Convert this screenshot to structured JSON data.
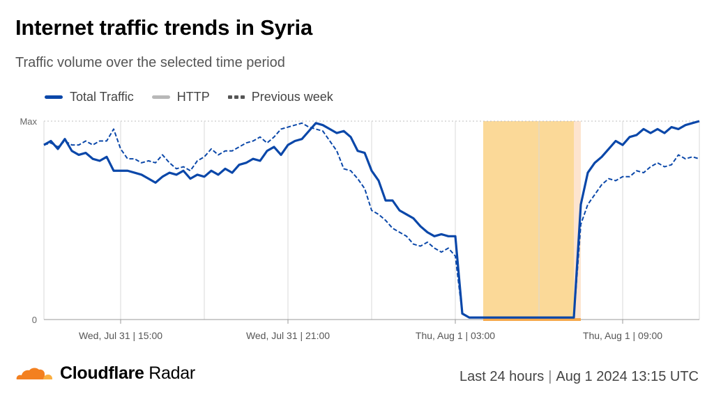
{
  "header": {
    "title": "Internet traffic trends in Syria",
    "subtitle": "Traffic volume over the selected time period"
  },
  "legend": [
    {
      "label": "Total Traffic",
      "color": "#0a47a9",
      "style": "solid"
    },
    {
      "label": "HTTP",
      "color": "#b8b8b8",
      "style": "solid"
    },
    {
      "label": "Previous week",
      "color": "#555555",
      "style": "dashed"
    }
  ],
  "footer": {
    "brand_bold": "Cloudflare",
    "brand_light": "Radar",
    "range": "Last 24 hours",
    "timestamp": "Aug 1 2024 13:15 UTC"
  },
  "colors": {
    "total": "#0a47a9",
    "previous": "#0a47a9",
    "outage": "#fbd998",
    "outage_edge": "#fde4cf",
    "outage_marker": "#f6a94b",
    "grid": "#d9d9d9",
    "cloud_orange": "#f38020",
    "cloud_light": "#faae40"
  },
  "chart_data": {
    "type": "line",
    "x_unit": "hours after Jul 31 2024 13:15 UTC",
    "xlim": [
      0,
      23.5
    ],
    "ylim": [
      0,
      1
    ],
    "y_tick_labels": [
      {
        "value": 0,
        "label": "0"
      },
      {
        "value": 1,
        "label": "Max"
      }
    ],
    "x_ticks": [
      {
        "value": 2.75,
        "label": "Wed, Jul 31 | 15:00"
      },
      {
        "value": 8.75,
        "label": "Wed, Jul 31 | 21:00"
      },
      {
        "value": 14.75,
        "label": "Thu, Aug 1 | 03:00"
      },
      {
        "value": 20.75,
        "label": "Thu, Aug 1 | 09:00"
      }
    ],
    "minor_gridlines": [
      5.75,
      11.75,
      17.75
    ],
    "outage_ranges": [
      {
        "start": 15.75,
        "end": 19.0,
        "style": "main"
      },
      {
        "start": 19.0,
        "end": 19.25,
        "style": "edge"
      }
    ],
    "series": [
      {
        "name": "Total Traffic",
        "style": "solid",
        "x": [
          0,
          0.25,
          0.5,
          0.75,
          1,
          1.25,
          1.5,
          1.75,
          2,
          2.25,
          2.5,
          2.75,
          3,
          3.25,
          3.5,
          3.75,
          4,
          4.25,
          4.5,
          4.75,
          5,
          5.25,
          5.5,
          5.75,
          6,
          6.25,
          6.5,
          6.75,
          7,
          7.25,
          7.5,
          7.75,
          8,
          8.25,
          8.5,
          8.75,
          9,
          9.25,
          9.5,
          9.75,
          10,
          10.25,
          10.5,
          10.75,
          11,
          11.25,
          11.5,
          11.75,
          12,
          12.25,
          12.5,
          12.75,
          13,
          13.25,
          13.5,
          13.75,
          14,
          14.25,
          14.5,
          14.75,
          15,
          15.25,
          15.5,
          15.75,
          16,
          16.25,
          16.5,
          16.75,
          17,
          17.25,
          17.5,
          17.75,
          18,
          18.25,
          18.5,
          18.75,
          19,
          19.25,
          19.5,
          19.75,
          20,
          20.25,
          20.5,
          20.75,
          21,
          21.25,
          21.5,
          21.75,
          22,
          22.25,
          22.5,
          22.75,
          23,
          23.25,
          23.5
        ],
        "values": [
          0.88,
          0.9,
          0.86,
          0.91,
          0.85,
          0.83,
          0.84,
          0.81,
          0.8,
          0.82,
          0.75,
          0.75,
          0.75,
          0.74,
          0.73,
          0.71,
          0.69,
          0.72,
          0.74,
          0.73,
          0.75,
          0.71,
          0.73,
          0.72,
          0.75,
          0.73,
          0.76,
          0.74,
          0.78,
          0.79,
          0.81,
          0.8,
          0.85,
          0.87,
          0.83,
          0.88,
          0.9,
          0.91,
          0.95,
          0.99,
          0.98,
          0.96,
          0.94,
          0.95,
          0.92,
          0.85,
          0.84,
          0.75,
          0.7,
          0.6,
          0.6,
          0.55,
          0.53,
          0.51,
          0.47,
          0.44,
          0.42,
          0.43,
          0.42,
          0.42,
          0.03,
          0.01,
          0.01,
          0.01,
          0.01,
          0.01,
          0.01,
          0.01,
          0.01,
          0.01,
          0.01,
          0.01,
          0.01,
          0.01,
          0.01,
          0.01,
          0.01,
          0.58,
          0.74,
          0.79,
          0.82,
          0.86,
          0.9,
          0.88,
          0.92,
          0.93,
          0.96,
          0.94,
          0.96,
          0.94,
          0.97,
          0.96,
          0.98,
          0.99,
          1.0
        ]
      },
      {
        "name": "Previous week",
        "style": "dashed",
        "x": [
          0,
          0.25,
          0.5,
          0.75,
          1,
          1.25,
          1.5,
          1.75,
          2,
          2.25,
          2.5,
          2.75,
          3,
          3.25,
          3.5,
          3.75,
          4,
          4.25,
          4.5,
          4.75,
          5,
          5.25,
          5.5,
          5.75,
          6,
          6.25,
          6.5,
          6.75,
          7,
          7.25,
          7.5,
          7.75,
          8,
          8.25,
          8.5,
          8.75,
          9,
          9.25,
          9.5,
          9.75,
          10,
          10.25,
          10.5,
          10.75,
          11,
          11.25,
          11.5,
          11.75,
          12,
          12.25,
          12.5,
          12.75,
          13,
          13.25,
          13.5,
          13.75,
          14,
          14.25,
          14.5,
          14.75,
          15,
          15.25,
          15.5,
          15.75,
          16,
          16.25,
          16.5,
          16.75,
          17,
          17.25,
          17.5,
          17.75,
          18,
          18.25,
          18.5,
          18.75,
          19,
          19.25,
          19.5,
          19.75,
          20,
          20.25,
          20.5,
          20.75,
          21,
          21.25,
          21.5,
          21.75,
          22,
          22.25,
          22.5,
          22.75,
          23,
          23.25,
          23.5
        ],
        "values": [
          0.88,
          0.89,
          0.87,
          0.9,
          0.88,
          0.88,
          0.9,
          0.88,
          0.9,
          0.9,
          0.96,
          0.86,
          0.81,
          0.81,
          0.79,
          0.8,
          0.79,
          0.83,
          0.79,
          0.76,
          0.77,
          0.75,
          0.8,
          0.82,
          0.86,
          0.83,
          0.85,
          0.85,
          0.87,
          0.89,
          0.9,
          0.92,
          0.89,
          0.92,
          0.96,
          0.97,
          0.98,
          0.99,
          0.97,
          0.96,
          0.95,
          0.9,
          0.85,
          0.76,
          0.75,
          0.71,
          0.66,
          0.55,
          0.53,
          0.5,
          0.46,
          0.44,
          0.42,
          0.38,
          0.37,
          0.39,
          0.36,
          0.34,
          0.36,
          0.32,
          0.03,
          0.01,
          0.01,
          0.01,
          0.01,
          0.01,
          0.01,
          0.01,
          0.01,
          0.01,
          0.01,
          0.01,
          0.01,
          0.01,
          0.01,
          0.01,
          0.01,
          0.48,
          0.58,
          0.63,
          0.68,
          0.71,
          0.7,
          0.72,
          0.72,
          0.75,
          0.74,
          0.77,
          0.79,
          0.77,
          0.78,
          0.83,
          0.81,
          0.82,
          0.81
        ]
      }
    ]
  }
}
